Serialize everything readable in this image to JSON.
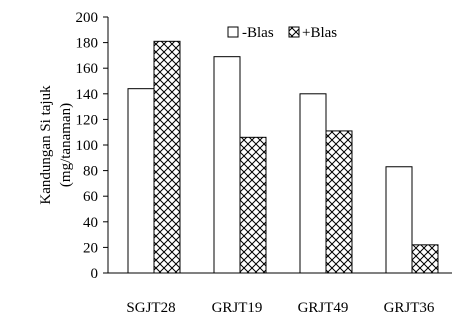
{
  "chart_data": {
    "type": "bar",
    "categories": [
      "SGJT28",
      "GRJT19",
      "GRJT49",
      "GRJT36"
    ],
    "series": [
      {
        "name": "-Blas",
        "values": [
          144,
          169,
          140,
          83
        ],
        "pattern": "none"
      },
      {
        "name": "+Blas",
        "values": [
          181,
          106,
          111,
          22
        ],
        "pattern": "crosshatch"
      }
    ],
    "title": "",
    "xlabel": "",
    "ylabel": [
      "Kandungan Si tajuk",
      "(mg/tanaman)"
    ],
    "ylim": [
      0,
      200
    ],
    "yticks": [
      0,
      20,
      40,
      60,
      80,
      100,
      120,
      140,
      160,
      180,
      200
    ],
    "grid": false,
    "legend_position": "top-right",
    "colors": {
      "bar_fill": "#ffffff",
      "bar_stroke": "#000000",
      "axis": "#000000"
    }
  }
}
